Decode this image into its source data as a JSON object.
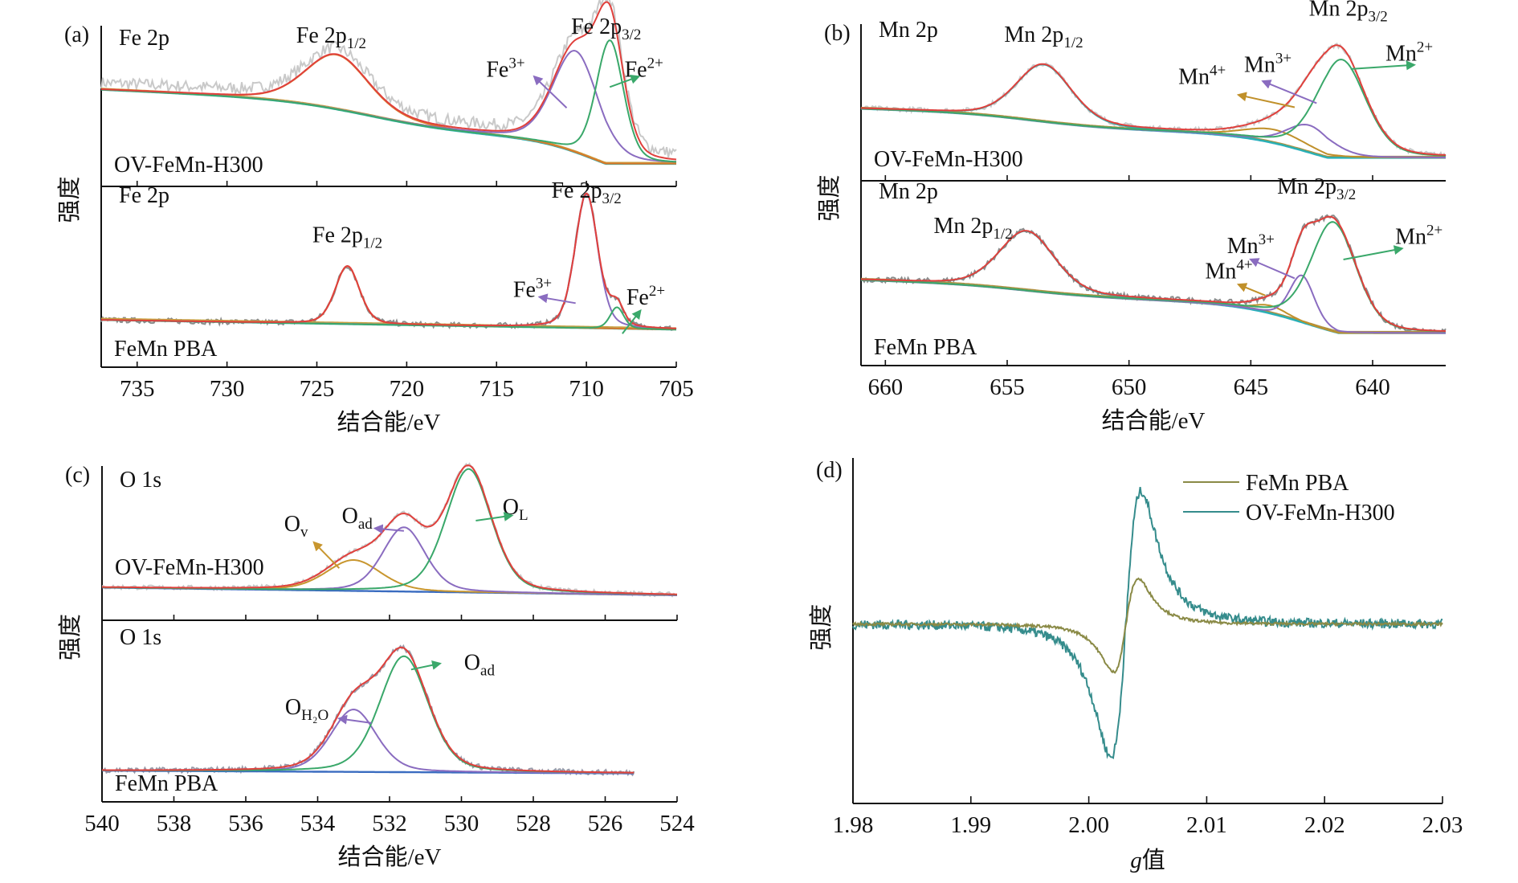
{
  "figure": {
    "panels": [
      "(a)",
      "(b)",
      "(c)",
      "(d)"
    ],
    "intensity_label": "强度",
    "energy_axis_label": "结合能/eV"
  },
  "chart_data": [
    {
      "id": "a",
      "type": "line",
      "panel_label": "(a)",
      "title": "Fe 2p",
      "xlabel": "结合能/eV",
      "ylabel": "强度",
      "xlim": [
        737,
        705
      ],
      "xticks": [
        735,
        730,
        725,
        720,
        715,
        710,
        705
      ],
      "grid": false,
      "colors": {
        "raw_top": "#c9c9c9",
        "raw_bottom": "#8c8c8c",
        "envelope": "#e0403c",
        "fe2p12": "#d9782a",
        "fe3": "#8a6cc0",
        "fe2": "#3aa86a",
        "background": "#2fb0b0",
        "background2": "#c9a040"
      },
      "subplots": [
        {
          "sample": "OV-FeMn-H300",
          "region_label": "Fe 2p",
          "peaks": [
            {
              "name": "Fe 2p1/2",
              "center": 723.9,
              "height": 0.42,
              "fwhm": 4.2,
              "color_key": "fe2p12"
            },
            {
              "name": "Fe3+",
              "center": 710.6,
              "height": 0.78,
              "fwhm": 3.0,
              "color_key": "fe3"
            },
            {
              "name": "Fe2+",
              "center": 708.7,
              "height": 0.95,
              "fwhm": 1.8,
              "color_key": "fe2"
            }
          ],
          "background": {
            "start": 0.62,
            "end": 0.05,
            "steps": [
              {
                "center": 722,
                "amp": 0.22,
                "width": 2.5
              },
              {
                "center": 709.5,
                "amp": 0.3,
                "width": 1.6
              }
            ]
          },
          "labels": [
            {
              "text": "Fe 2p",
              "sub": "1/2",
              "sup": "",
              "x": 724.2,
              "y": 0.98
            },
            {
              "text": "Fe 2p",
              "sub": "3/2",
              "sup": "",
              "x": 708.9,
              "y": 1.05
            },
            {
              "text": "Fe",
              "sub": "",
              "sup": "3+",
              "x": 714.5,
              "y": 0.72,
              "arrow_from": [
                711.1,
                0.48
              ],
              "arrow_to": [
                712.9,
                0.72
              ],
              "arrow_color_key": "fe3"
            },
            {
              "text": "Fe",
              "sub": "",
              "sup": "2+",
              "x": 706.8,
              "y": 0.72,
              "arrow_from": [
                708.7,
                0.64
              ],
              "arrow_to": [
                707.1,
                0.72
              ],
              "arrow_color_key": "fe2"
            }
          ]
        },
        {
          "sample": "FeMn PBA",
          "region_label": "Fe 2p",
          "peaks": [
            {
              "name": "Fe 2p1/2",
              "center": 723.3,
              "height": 0.38,
              "fwhm": 1.6,
              "color_key": "fe2p12"
            },
            {
              "name": "Fe3+",
              "center": 710.0,
              "height": 0.88,
              "fwhm": 1.5,
              "color_key": "fe3"
            },
            {
              "name": "Fe2+",
              "center": 708.3,
              "height": 0.14,
              "fwhm": 0.9,
              "color_key": "fe2"
            }
          ],
          "background": {
            "start": 0.22,
            "end": 0.04,
            "steps": []
          },
          "labels": [
            {
              "text": "Fe 2p",
              "sub": "1/2",
              "sup": "",
              "x": 723.3,
              "y": 0.73
            },
            {
              "text": "Fe 2p",
              "sub": "3/2",
              "sup": "",
              "x": 710.0,
              "y": 1.02
            },
            {
              "text": "Fe",
              "sub": "",
              "sup": "3+",
              "x": 713.0,
              "y": 0.37,
              "arrow_from": [
                710.6,
                0.33
              ],
              "arrow_to": [
                712.6,
                0.37
              ],
              "arrow_color_key": "fe3"
            },
            {
              "text": "Fe",
              "sub": "",
              "sup": "2+",
              "x": 706.7,
              "y": 0.32,
              "arrow_from": [
                708.0,
                0.13
              ],
              "arrow_to": [
                707.0,
                0.28
              ],
              "arrow_color_key": "fe2"
            }
          ]
        }
      ]
    },
    {
      "id": "b",
      "type": "line",
      "panel_label": "(b)",
      "title": "Mn 2p",
      "xlabel": "结合能/eV",
      "ylabel": "强度",
      "xlim": [
        661,
        637
      ],
      "xticks": [
        660,
        655,
        650,
        645,
        640
      ],
      "grid": false,
      "colors": {
        "raw": "#c9c9c9",
        "raw_bottom": "#8c8c8c",
        "envelope": "#e0403c",
        "mn2p12": "#2ab0b0",
        "mn4": "#c0902a",
        "mn3": "#8a6cc0",
        "mn2": "#3aa86a",
        "background": "#2fb0c8",
        "background2": "#b09040"
      },
      "subplots": [
        {
          "sample": "OV-FeMn-H300",
          "region_label": "Mn 2p",
          "peaks": [
            {
              "name": "Mn 2p1/2",
              "center": 653.5,
              "height": 0.42,
              "fwhm": 2.7,
              "color_key": "mn2p12"
            },
            {
              "name": "Mn4+",
              "center": 644.0,
              "height": 0.1,
              "fwhm": 3.0,
              "color_key": "mn4"
            },
            {
              "name": "Mn3+",
              "center": 642.6,
              "height": 0.2,
              "fwhm": 2.2,
              "color_key": "mn3"
            },
            {
              "name": "Mn2+",
              "center": 641.3,
              "height": 0.72,
              "fwhm": 2.4,
              "color_key": "mn2"
            }
          ],
          "background": {
            "start": 0.44,
            "end": 0.08,
            "steps": [
              {
                "center": 654.0,
                "amp": 0.1,
                "width": 1.6
              },
              {
                "center": 642.5,
                "amp": 0.26,
                "width": 1.4
              }
            ]
          },
          "labels": [
            {
              "text": "Mn 2p",
              "sub": "1/2",
              "sup": "",
              "x": 653.5,
              "y": 0.93
            },
            {
              "text": "Mn 2p",
              "sub": "3/2",
              "sup": "",
              "x": 641.0,
              "y": 1.12
            },
            {
              "text": "Mn",
              "sub": "",
              "sup": "4+",
              "x": 647.0,
              "y": 0.62
            },
            {
              "text": "Mn",
              "sub": "",
              "sup": "3+",
              "x": 644.3,
              "y": 0.71
            },
            {
              "text": "Mn",
              "sub": "",
              "sup": "2+",
              "x": 638.5,
              "y": 0.79
            }
          ],
          "arrows": [
            {
              "from": [
                643.2,
                0.45
              ],
              "to": [
                645.5,
                0.54
              ],
              "color_key": "mn4"
            },
            {
              "from": [
                642.3,
                0.48
              ],
              "to": [
                644.5,
                0.64
              ],
              "color_key": "mn3"
            },
            {
              "from": [
                640.9,
                0.73
              ],
              "to": [
                638.3,
                0.76
              ],
              "color_key": "mn2"
            }
          ]
        },
        {
          "sample": "FeMn PBA",
          "region_label": "Mn 2p",
          "peaks": [
            {
              "name": "Mn 2p1/2",
              "center": 654.2,
              "height": 0.38,
              "fwhm": 2.7,
              "color_key": "mn2p12"
            },
            {
              "name": "Mn4+",
              "center": 644.2,
              "height": 0.05,
              "fwhm": 1.6,
              "color_key": "mn4"
            },
            {
              "name": "Mn3+",
              "center": 642.9,
              "height": 0.3,
              "fwhm": 1.2,
              "color_key": "mn3"
            },
            {
              "name": "Mn2+",
              "center": 641.6,
              "height": 0.7,
              "fwhm": 2.2,
              "color_key": "mn2"
            }
          ],
          "background": {
            "start": 0.47,
            "end": 0.13,
            "steps": [
              {
                "center": 654.2,
                "amp": 0.07,
                "width": 1.6
              },
              {
                "center": 642.7,
                "amp": 0.24,
                "width": 1.4
              }
            ]
          },
          "labels": [
            {
              "text": "Mn 2p",
              "sub": "1/2",
              "sup": "",
              "x": 656.4,
              "y": 0.77
            },
            {
              "text": "Mn 2p",
              "sub": "3/2",
              "sup": "",
              "x": 642.3,
              "y": 1.02
            },
            {
              "text": "Mn",
              "sub": "",
              "sup": "4+",
              "x": 645.9,
              "y": 0.48
            },
            {
              "text": "Mn",
              "sub": "",
              "sup": "3+",
              "x": 645.0,
              "y": 0.64
            },
            {
              "text": "Mn",
              "sub": "",
              "sup": "2+",
              "x": 638.1,
              "y": 0.7
            }
          ],
          "arrows": [
            {
              "from": [
                644.4,
                0.37
              ],
              "to": [
                645.5,
                0.44
              ],
              "color_key": "mn4"
            },
            {
              "from": [
                643.2,
                0.48
              ],
              "to": [
                645.0,
                0.6
              ],
              "color_key": "mn3"
            },
            {
              "from": [
                641.2,
                0.6
              ],
              "to": [
                638.8,
                0.67
              ],
              "color_key": "mn2"
            }
          ]
        }
      ]
    },
    {
      "id": "c",
      "type": "line",
      "panel_label": "(c)",
      "title": "O 1s",
      "xlabel": "结合能/eV",
      "ylabel": "强度",
      "xlim": [
        540,
        524
      ],
      "xticks": [
        540,
        538,
        536,
        534,
        532,
        530,
        528,
        526,
        524
      ],
      "grid": false,
      "colors": {
        "raw": "#c9c9c9",
        "raw_bottom": "#9a9aa8",
        "envelope": "#e0403c",
        "ov": "#c8962e",
        "oad": "#8a6cc0",
        "ol": "#3aa86a",
        "oh2o": "#8a6cc0",
        "oad2": "#3aa86a",
        "background": "#3a6cc0"
      },
      "subplots": [
        {
          "sample": "OV-FeMn-H300",
          "region_label": "O 1s",
          "xrange": [
            540,
            524
          ],
          "peaks": [
            {
              "name": "Ov",
              "center": 533.0,
              "height": 0.24,
              "fwhm": 1.8,
              "color_key": "ov"
            },
            {
              "name": "Oad",
              "center": 531.6,
              "height": 0.5,
              "fwhm": 1.4,
              "color_key": "oad"
            },
            {
              "name": "OL",
              "center": 529.8,
              "height": 0.96,
              "fwhm": 1.5,
              "color_key": "ol"
            }
          ],
          "baseline": {
            "start": 0.18,
            "end": 0.12
          },
          "labels": [
            {
              "text": "O",
              "sub": "v",
              "sup": "",
              "x": 534.6,
              "y": 0.62
            },
            {
              "text": "O",
              "sub": "ad",
              "sup": "",
              "x": 532.9,
              "y": 0.68
            },
            {
              "text": "O",
              "sub": "L",
              "sup": "",
              "x": 528.5,
              "y": 0.75
            }
          ],
          "arrows": [
            {
              "from": [
                533.4,
                0.33
              ],
              "to": [
                534.1,
                0.53
              ],
              "color_key": "ov"
            },
            {
              "from": [
                531.6,
                0.62
              ],
              "to": [
                532.4,
                0.64
              ],
              "color_key": "oad"
            },
            {
              "from": [
                529.6,
                0.7
              ],
              "to": [
                528.6,
                0.74
              ],
              "color_key": "ol"
            }
          ]
        },
        {
          "sample": "FeMn PBA",
          "region_label": "O 1s",
          "xrange": [
            540,
            525.2
          ],
          "peaks": [
            {
              "name": "OH2O",
              "center": 533.0,
              "height": 0.42,
              "fwhm": 1.5,
              "color_key": "oh2o"
            },
            {
              "name": "Oad",
              "center": 531.6,
              "height": 0.78,
              "fwhm": 1.6,
              "color_key": "oad2"
            }
          ],
          "baseline": {
            "start": 0.14,
            "end": 0.12
          },
          "labels": [
            {
              "text": "O",
              "sub": "H₂O",
              "sup": "",
              "x": 534.3,
              "y": 0.52
            },
            {
              "text": "O",
              "sub": "ad",
              "sup": "",
              "x": 529.5,
              "y": 0.82
            }
          ],
          "arrows": [
            {
              "from": [
                532.5,
                0.46
              ],
              "to": [
                533.4,
                0.49
              ],
              "color_key": "oh2o"
            },
            {
              "from": [
                531.4,
                0.82
              ],
              "to": [
                530.6,
                0.86
              ],
              "color_key": "oad2"
            }
          ]
        }
      ]
    },
    {
      "id": "d",
      "type": "line",
      "panel_label": "(d)",
      "title": "",
      "xlabel": "g值",
      "ylabel": "强度",
      "xlim": [
        1.98,
        2.03
      ],
      "xticks": [
        "1.98",
        "1.99",
        "2.00",
        "2.01",
        "2.02",
        "2.03"
      ],
      "grid": false,
      "legend_position": "top-right",
      "series": [
        {
          "name": "FeMn PBA",
          "color": "#8a8a46",
          "min_g": 2.0018,
          "min_value": -0.36,
          "max_g": 2.0045,
          "max_value": 0.34,
          "noise": 0.01
        },
        {
          "name": "OV-FeMn-H300",
          "color": "#358c8c",
          "min_g": 2.0015,
          "min_value": -1.0,
          "max_g": 2.0048,
          "max_value": 1.0,
          "noise": 0.035
        }
      ],
      "ylim": [
        -1.35,
        1.25
      ]
    }
  ]
}
